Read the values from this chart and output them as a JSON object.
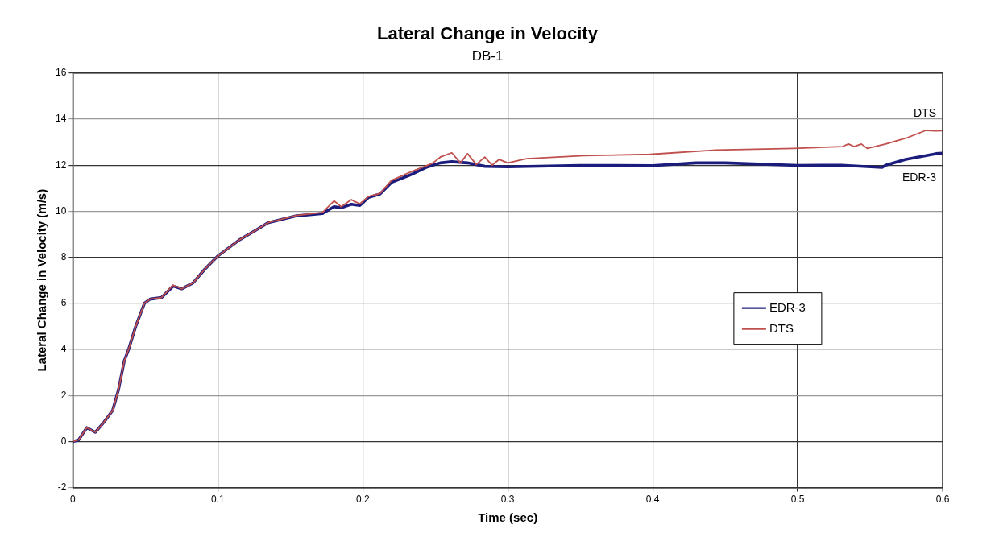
{
  "chart_data": {
    "type": "line",
    "title": "Lateral Change in Velocity",
    "subtitle": "DB-1",
    "xlabel": "Time (sec)",
    "ylabel": "Lateral Change in Velocity (m/s)",
    "xlim": [
      0,
      0.6
    ],
    "xticks": [
      0,
      0.1,
      0.2,
      0.3,
      0.4,
      0.5,
      0.6
    ],
    "ylim": [
      -2,
      16
    ],
    "yticks": [
      -2,
      0,
      2,
      4,
      6,
      8,
      10,
      12,
      14,
      16
    ],
    "grid": true,
    "legend": "right",
    "marker": "none",
    "line_style": "solid",
    "series": [
      {
        "name": "EDR-3",
        "color": "#1c1c7c",
        "x": [
          0,
          0.004,
          0.0097,
          0.0156,
          0.0216,
          0.0275,
          0.0315,
          0.0355,
          0.0385,
          0.0434,
          0.0494,
          0.0533,
          0.0612,
          0.0692,
          0.0751,
          0.083,
          0.091,
          0.0999,
          0.1148,
          0.1267,
          0.1346,
          0.1544,
          0.1723,
          0.1802,
          0.1851,
          0.1921,
          0.198,
          0.204,
          0.2119,
          0.2198,
          0.2337,
          0.2436,
          0.2535,
          0.2614,
          0.2723,
          0.2842,
          0.3001,
          0.35,
          0.4,
          0.43,
          0.45,
          0.5,
          0.53,
          0.5582,
          0.5607,
          0.5746,
          0.5954,
          0.6
        ],
        "values": [
          0,
          0.07,
          0.6,
          0.4,
          0.85,
          1.35,
          2.24,
          3.5,
          4,
          5,
          6,
          6.18,
          6.25,
          6.75,
          6.63,
          6.89,
          7.48,
          8.05,
          8.75,
          9.19,
          9.5,
          9.8,
          9.9,
          10.2,
          10.15,
          10.3,
          10.25,
          10.6,
          10.75,
          11.25,
          11.6,
          11.9,
          12.1,
          12.15,
          12.1,
          11.95,
          11.93,
          11.99,
          11.98,
          12.1,
          12.1,
          11.99,
          12.0,
          11.9,
          12.0,
          12.25,
          12.5,
          12.52
        ]
      },
      {
        "name": "DTS",
        "color": "#c0504d",
        "x": [
          0,
          0.004,
          0.0097,
          0.0156,
          0.0216,
          0.0275,
          0.0315,
          0.0355,
          0.0385,
          0.0434,
          0.0494,
          0.0533,
          0.0612,
          0.0692,
          0.0751,
          0.083,
          0.091,
          0.0999,
          0.1148,
          0.1267,
          0.1346,
          0.1544,
          0.1723,
          0.1802,
          0.1851,
          0.1921,
          0.198,
          0.204,
          0.2119,
          0.2198,
          0.2337,
          0.2436,
          0.2485,
          0.2535,
          0.2614,
          0.2674,
          0.2723,
          0.2783,
          0.2842,
          0.2892,
          0.2941,
          0.3001,
          0.313,
          0.3526,
          0.398,
          0.4438,
          0.4973,
          0.531,
          0.535,
          0.539,
          0.5439,
          0.548,
          0.5607,
          0.5746,
          0.5885,
          0.5954,
          0.6
        ],
        "values": [
          0,
          0.07,
          0.6,
          0.4,
          0.85,
          1.35,
          2.24,
          3.5,
          4,
          5,
          6,
          6.18,
          6.25,
          6.79,
          6.63,
          6.89,
          7.48,
          8.05,
          8.75,
          9.19,
          9.5,
          9.82,
          9.95,
          10.45,
          10.2,
          10.5,
          10.32,
          10.64,
          10.77,
          11.34,
          11.72,
          11.97,
          12.1,
          12.35,
          12.54,
          12.1,
          12.5,
          12.03,
          12.35,
          12.0,
          12.25,
          12.1,
          12.28,
          12.41,
          12.47,
          12.66,
          12.73,
          12.81,
          12.92,
          12.81,
          12.92,
          12.73,
          12.92,
          13.17,
          13.51,
          13.49,
          13.5
        ]
      }
    ],
    "annotations": [
      {
        "text": "DTS",
        "x": 0.6,
        "y": 13.5
      },
      {
        "text": "EDR-3",
        "x": 0.6,
        "y": 12.52
      }
    ]
  }
}
